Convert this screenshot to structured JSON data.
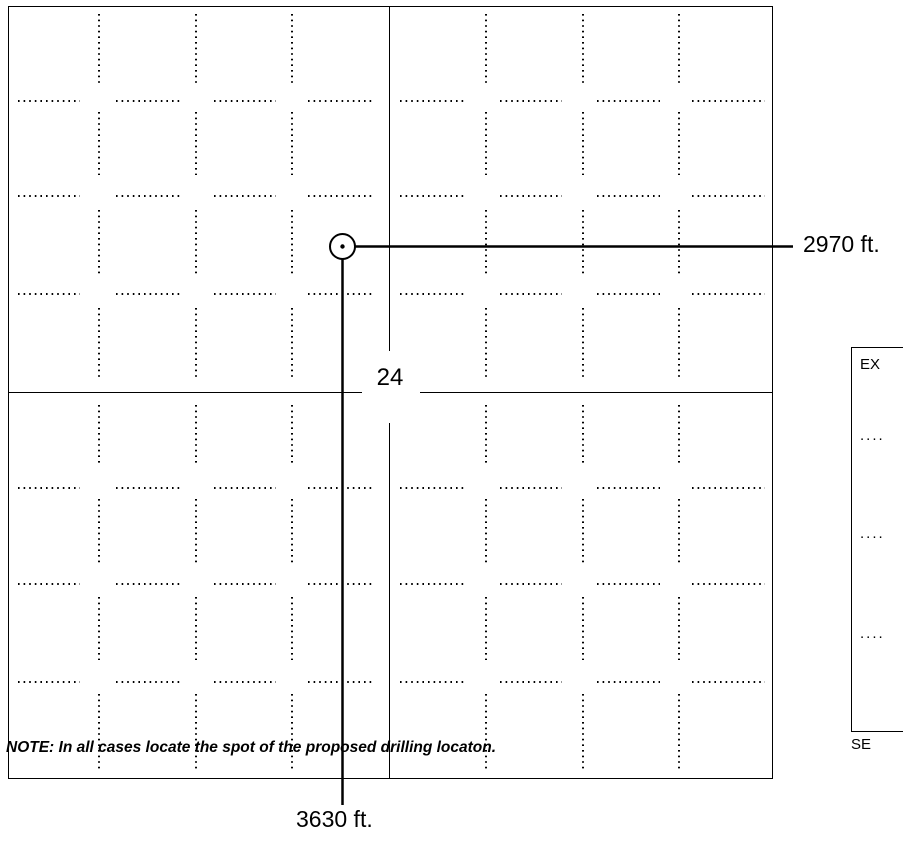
{
  "plat": {
    "section_number": "24",
    "east_distance": "2970 ft.",
    "south_distance": "3630 ft.",
    "note": "NOTE: In all cases locate the spot of the proposed drilling locaton."
  },
  "example": {
    "label": "EX",
    "bottom_label": "SE",
    "dots": [
      "....",
      "....",
      "...."
    ]
  },
  "colors": {
    "line": "#000000",
    "background": "#ffffff"
  },
  "icons": {
    "well": "drilling-location-icon"
  }
}
